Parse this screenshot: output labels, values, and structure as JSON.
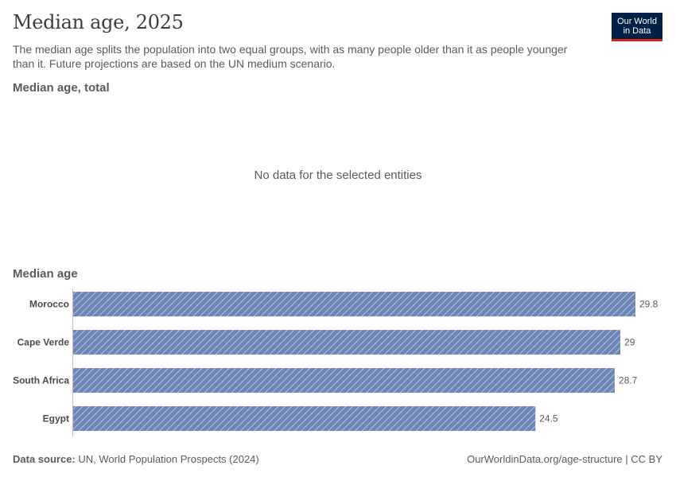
{
  "header": {
    "title": "Median age, 2025",
    "subtitle": "The median age splits the population into two equal groups, with as many people older than it as people younger than it. Future projections are based on the UN medium scenario.",
    "logo_line1": "Our World",
    "logo_line2": "in Data"
  },
  "panel_total": {
    "title": "Median age, total",
    "message": "No data for the selected entities"
  },
  "chart_data": {
    "type": "bar",
    "orientation": "horizontal",
    "title": "Median age",
    "categories": [
      "Morocco",
      "Cape Verde",
      "South Africa",
      "Egypt"
    ],
    "values": [
      29.8,
      29,
      28.7,
      24.5
    ],
    "value_labels": [
      "29.8",
      "29",
      "28.7",
      "24.5"
    ],
    "xlim": [
      0,
      29.8
    ],
    "bar_color": "#6d86b7",
    "stripe_color": "#b4c2dd",
    "grid": false,
    "legend": "none"
  },
  "footer": {
    "source_label": "Data source:",
    "source_text": "UN, World Population Prospects (2024)",
    "right": "OurWorldinData.org/age-structure | CC BY"
  }
}
